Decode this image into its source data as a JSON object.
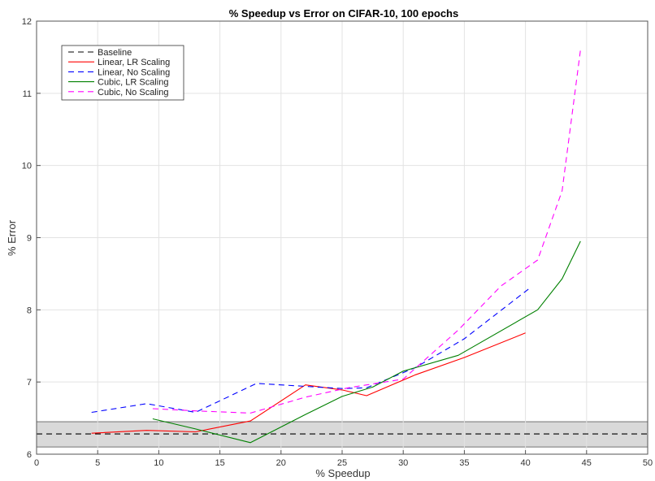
{
  "chart_data": {
    "type": "line",
    "title": "% Speedup vs Error on CIFAR-10, 100 epochs",
    "xlabel": "% Speedup",
    "ylabel": "% Error",
    "xlim": [
      0,
      50
    ],
    "ylim": [
      6,
      12
    ],
    "xticks": [
      0,
      5,
      10,
      15,
      20,
      25,
      30,
      35,
      40,
      45,
      50
    ],
    "yticks": [
      6,
      7,
      8,
      9,
      10,
      11,
      12
    ],
    "grid": true,
    "legend_position": "top-left",
    "baseline_band": [
      6.1,
      6.45
    ],
    "band_color": "#d9d9d9",
    "series": [
      {
        "name": "Baseline",
        "color": "#000000",
        "dash": "dashed",
        "x": [
          0,
          50
        ],
        "y": [
          6.28,
          6.28
        ]
      },
      {
        "name": "Linear, LR Scaling",
        "color": "#ff0000",
        "dash": "solid",
        "x": [
          4.5,
          9,
          13,
          17.5,
          22,
          25,
          27,
          31,
          35,
          40
        ],
        "y": [
          6.29,
          6.33,
          6.31,
          6.46,
          6.96,
          6.89,
          6.81,
          7.1,
          7.34,
          7.68
        ]
      },
      {
        "name": "Linear, No Scaling",
        "color": "#0000ff",
        "dash": "dashed",
        "x": [
          4.5,
          9,
          13,
          18,
          22,
          25,
          27,
          31,
          35,
          40.5
        ],
        "y": [
          6.58,
          6.7,
          6.58,
          6.98,
          6.94,
          6.91,
          6.92,
          7.2,
          7.6,
          8.32
        ]
      },
      {
        "name": "Cubic, LR Scaling",
        "color": "#008000",
        "dash": "solid",
        "x": [
          9.5,
          13,
          17.5,
          22,
          25,
          27.5,
          30,
          34.5,
          41,
          43,
          44.5
        ],
        "y": [
          6.49,
          6.35,
          6.16,
          6.55,
          6.8,
          6.93,
          7.15,
          7.37,
          8.0,
          8.43,
          8.95
        ]
      },
      {
        "name": "Cubic, No Scaling",
        "color": "#ff00ff",
        "dash": "dashed",
        "x": [
          9.5,
          13,
          17.5,
          22,
          25.5,
          30,
          34.5,
          38,
          41,
          43,
          44.5
        ],
        "y": [
          6.63,
          6.6,
          6.57,
          6.79,
          6.92,
          7.04,
          7.72,
          8.33,
          8.69,
          9.65,
          11.6
        ]
      }
    ]
  }
}
